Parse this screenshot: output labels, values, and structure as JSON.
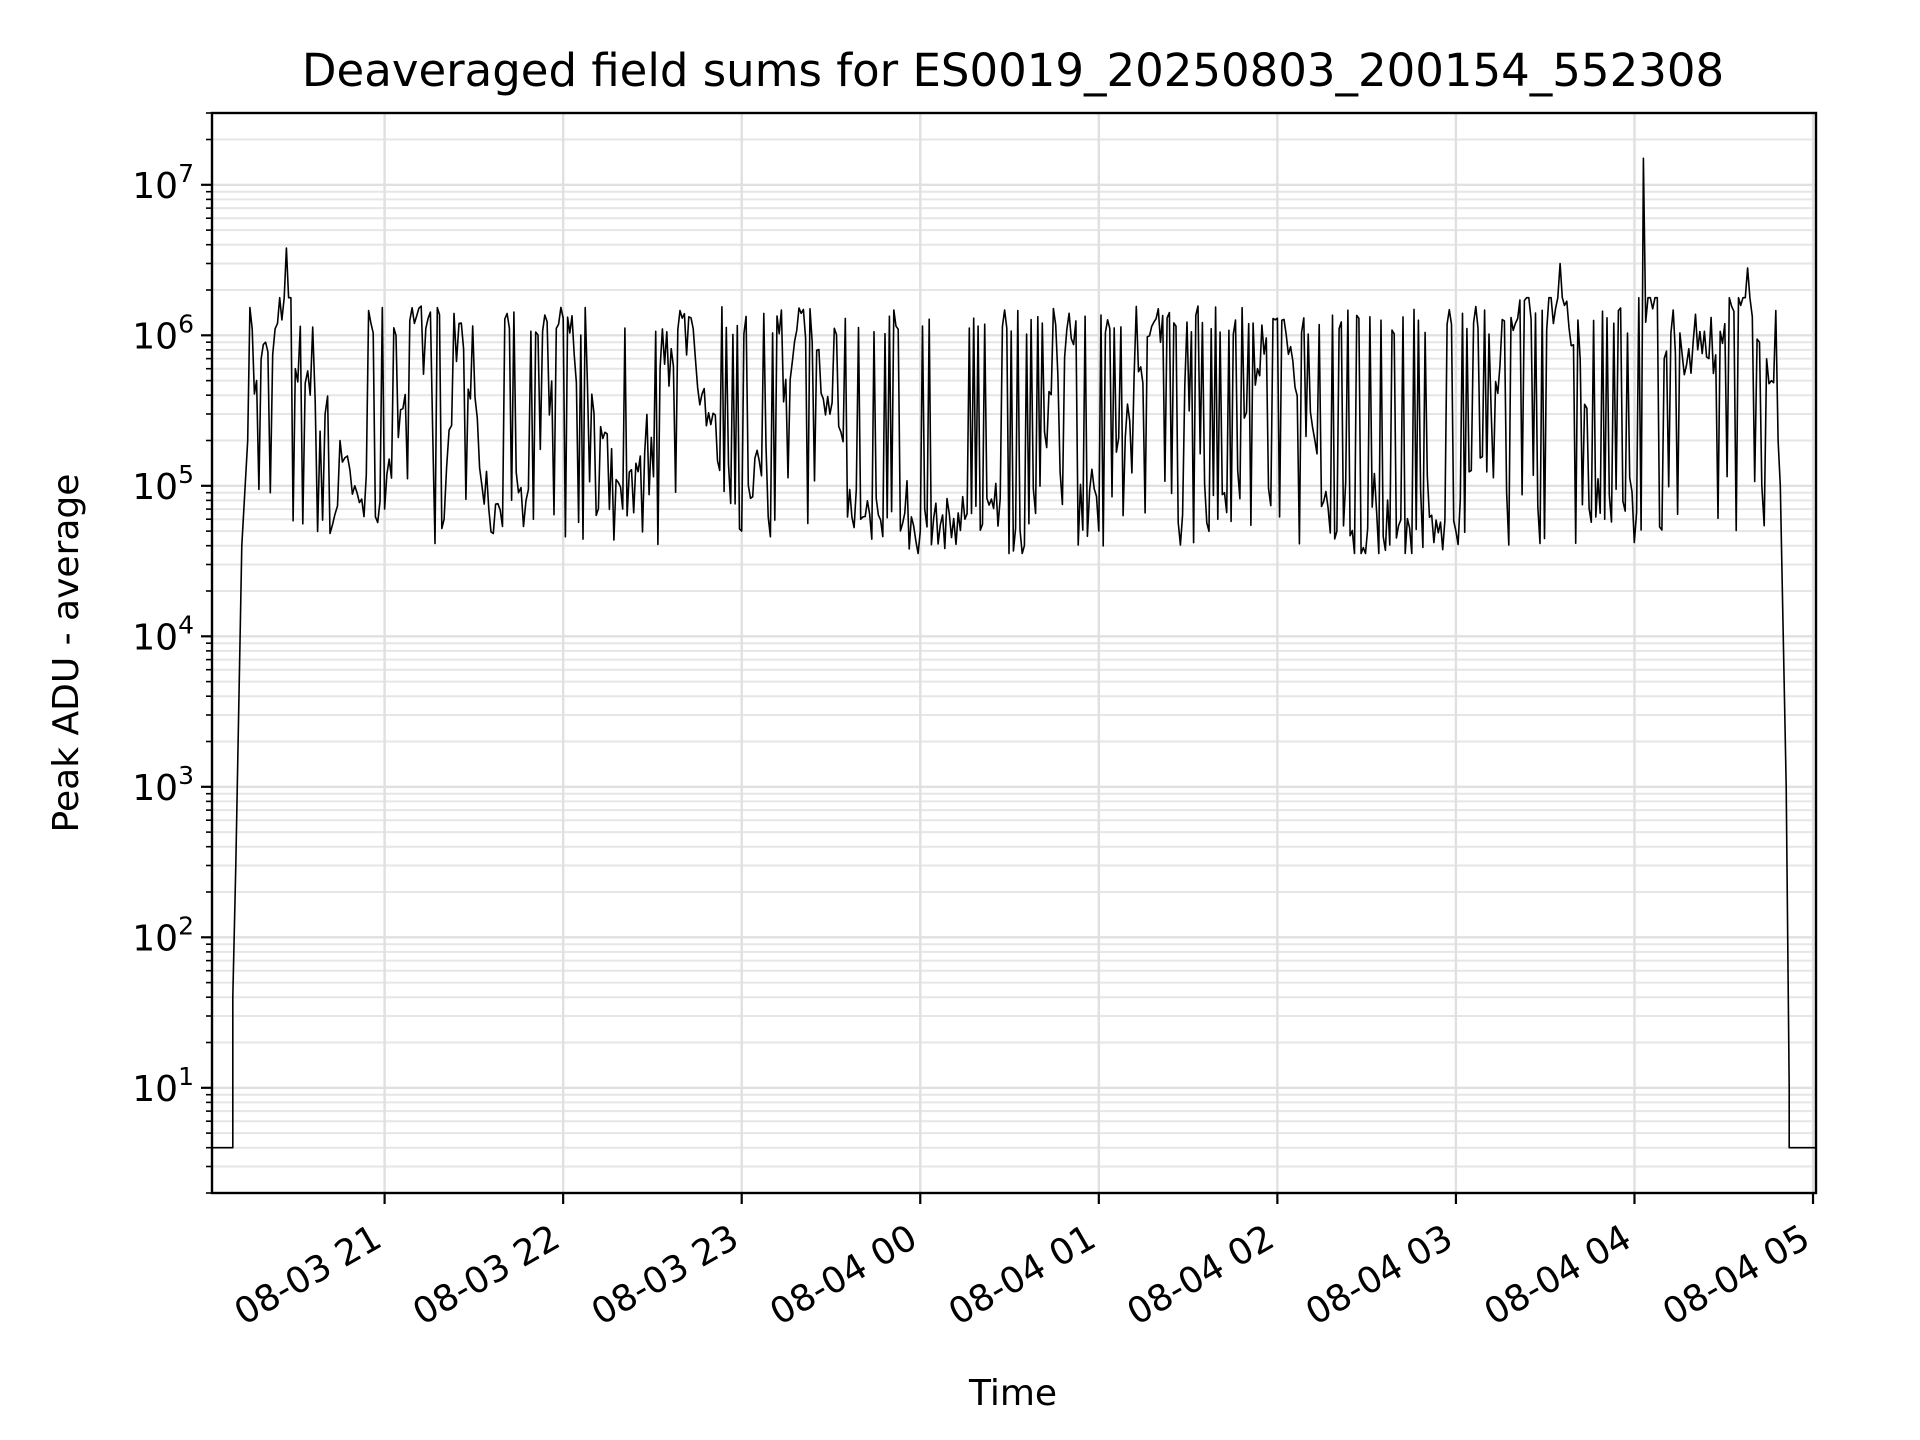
{
  "chart_data": {
    "type": "line",
    "title": "Deaveraged field sums for ES0019_20250803_200154_552308",
    "xlabel": "Time",
    "ylabel": "Peak ADU - average",
    "yscale": "log",
    "ylim": [
      2,
      30000000
    ],
    "xlim": [
      "2025-08-03 20:02",
      "2025-08-04 05:01"
    ],
    "grid": true,
    "x_ticks": [
      {
        "label": "08-03 21",
        "time": "2025-08-03 21:00"
      },
      {
        "label": "08-03 22",
        "time": "2025-08-03 22:00"
      },
      {
        "label": "08-03 23",
        "time": "2025-08-03 23:00"
      },
      {
        "label": "08-04 00",
        "time": "2025-08-04 00:00"
      },
      {
        "label": "08-04 01",
        "time": "2025-08-04 01:00"
      },
      {
        "label": "08-04 02",
        "time": "2025-08-04 02:00"
      },
      {
        "label": "08-04 03",
        "time": "2025-08-04 03:00"
      },
      {
        "label": "08-04 04",
        "time": "2025-08-04 04:00"
      },
      {
        "label": "08-04 05",
        "time": "2025-08-04 05:00"
      }
    ],
    "y_ticks": [
      {
        "base": "10",
        "exp": "1",
        "value": 10
      },
      {
        "base": "10",
        "exp": "2",
        "value": 100
      },
      {
        "base": "10",
        "exp": "3",
        "value": 1000
      },
      {
        "base": "10",
        "exp": "4",
        "value": 10000
      },
      {
        "base": "10",
        "exp": "5",
        "value": 100000
      },
      {
        "base": "10",
        "exp": "6",
        "value": 1000000
      },
      {
        "base": "10",
        "exp": "7",
        "value": 10000000
      }
    ],
    "series": [
      {
        "color": "#000000",
        "points": [
          [
            "2025-08-03 20:02",
            4
          ],
          [
            "2025-08-03 20:09",
            4
          ],
          [
            "2025-08-03 20:09",
            40
          ],
          [
            "2025-08-03 20:10",
            300
          ],
          [
            "2025-08-03 20:12",
            40000
          ],
          [
            "2025-08-03 20:14",
            200000
          ],
          [
            "2025-08-03 20:17",
            500000
          ],
          [
            "2025-08-03 20:20",
            900000
          ],
          [
            "2025-08-03 20:24",
            1200000
          ],
          [
            "2025-08-03 20:27",
            3800000
          ],
          [
            "2025-08-03 20:30",
            600000
          ],
          [
            "2025-08-03 20:35",
            400000
          ],
          [
            "2025-08-03 20:40",
            300000
          ],
          [
            "2025-08-03 20:45",
            200000
          ],
          [
            "2025-08-03 20:50",
            100000
          ],
          [
            "2025-08-03 21:00",
            70000
          ],
          [
            "2025-08-03 21:10",
            1200000
          ],
          [
            "2025-08-03 21:20",
            60000
          ],
          [
            "2025-08-03 21:25",
            1200000
          ],
          [
            "2025-08-03 21:35",
            70000
          ],
          [
            "2025-08-03 21:45",
            90000
          ],
          [
            "2025-08-03 21:50",
            60000
          ],
          [
            "2025-08-03 22:00",
            1300000
          ],
          [
            "2025-08-03 22:20",
            70000
          ],
          [
            "2025-08-03 22:40",
            1300000
          ],
          [
            "2025-08-03 23:00",
            50000
          ],
          [
            "2025-08-03 23:20",
            1400000
          ],
          [
            "2025-08-03 23:40",
            60000
          ],
          [
            "2025-08-04 00:00",
            50000
          ],
          [
            "2025-08-04 00:15",
            60000
          ],
          [
            "2025-08-04 00:35",
            40000
          ],
          [
            "2025-08-04 00:50",
            1400000
          ],
          [
            "2025-08-04 01:00",
            50000
          ],
          [
            "2025-08-04 01:20",
            1500000
          ],
          [
            "2025-08-04 01:40",
            60000
          ],
          [
            "2025-08-04 02:00",
            1300000
          ],
          [
            "2025-08-04 02:20",
            50000
          ],
          [
            "2025-08-04 02:40",
            45000
          ],
          [
            "2025-08-04 03:00",
            50000
          ],
          [
            "2025-08-04 03:20",
            1200000
          ],
          [
            "2025-08-04 03:35",
            3000000
          ],
          [
            "2025-08-04 03:50",
            60000
          ],
          [
            "2025-08-04 04:03",
            15000000
          ],
          [
            "2025-08-04 04:10",
            700000
          ],
          [
            "2025-08-04 04:25",
            700000
          ],
          [
            "2025-08-04 04:38",
            2800000
          ],
          [
            "2025-08-04 04:42",
            900000
          ],
          [
            "2025-08-04 04:46",
            500000
          ],
          [
            "2025-08-04 04:49",
            100000
          ],
          [
            "2025-08-04 04:51",
            1000
          ],
          [
            "2025-08-04 04:52",
            10
          ],
          [
            "2025-08-04 04:52",
            4
          ],
          [
            "2025-08-04 05:01",
            4
          ]
        ]
      }
    ]
  }
}
